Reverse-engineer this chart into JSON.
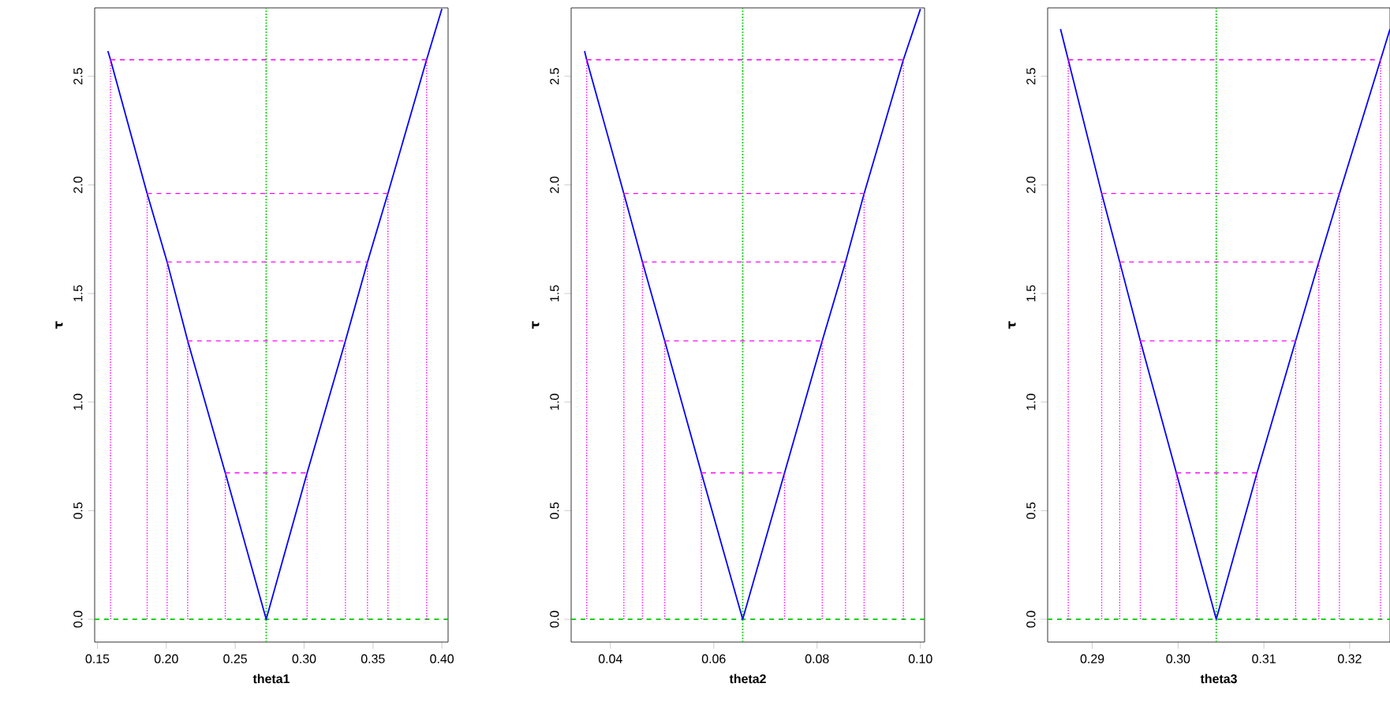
{
  "chart_data": [
    {
      "type": "line",
      "xlabel": "theta1",
      "ylabel": "τ",
      "xlim": [
        0.148,
        0.4045
      ],
      "ylim": [
        -0.105,
        2.815
      ],
      "xticks": [
        {
          "value": 0.15,
          "label": "0.15"
        },
        {
          "value": 0.2,
          "label": "0.20"
        },
        {
          "value": 0.25,
          "label": "0.25"
        },
        {
          "value": 0.3,
          "label": "0.30"
        },
        {
          "value": 0.35,
          "label": "0.35"
        },
        {
          "value": 0.4,
          "label": "0.40"
        }
      ],
      "yticks": [
        {
          "value": 0,
          "label": "0.0"
        },
        {
          "value": 0.5,
          "label": "0.5"
        },
        {
          "value": 1,
          "label": "1.0"
        },
        {
          "value": 1.5,
          "label": "1.5"
        },
        {
          "value": 2,
          "label": "2.0"
        },
        {
          "value": 2.5,
          "label": "2.5"
        }
      ],
      "series": [
        {
          "color": "#0000ff",
          "line_style": "solid",
          "x": [
            0.1576,
            0.1595,
            0.1861,
            0.2006,
            0.2155,
            0.2428,
            0.2725,
            0.3022,
            0.33,
            0.346,
            0.3608,
            0.3889,
            0.4
          ],
          "values": [
            2.616,
            2.576,
            1.96,
            1.645,
            1.282,
            0.674,
            0,
            0.674,
            1.282,
            1.645,
            1.96,
            2.576,
            2.81
          ]
        },
        {
          "color": "#ff00ff",
          "line_style": "dashed",
          "x": [
            0.2428,
            0.3022,
            null,
            0.2155,
            0.33,
            null,
            0.2006,
            0.346,
            null,
            0.1861,
            0.3608,
            null,
            0.1595,
            0.3889
          ],
          "values": [
            0.674,
            0.674,
            null,
            1.282,
            1.282,
            null,
            1.645,
            1.645,
            null,
            1.96,
            1.96,
            null,
            2.576,
            2.576
          ]
        },
        {
          "color": "#ff00ff",
          "line_style": "dotted",
          "x": [
            0.2428,
            0.2428,
            null,
            0.3022,
            0.3022,
            null,
            0.2155,
            0.2155,
            null,
            0.33,
            0.33,
            null,
            0.2006,
            0.2006,
            null,
            0.346,
            0.346,
            null,
            0.1861,
            0.1861,
            null,
            0.3608,
            0.3608,
            null,
            0.1595,
            0.1595,
            null,
            0.3889,
            0.3889
          ],
          "values": [
            0,
            0.674,
            null,
            0,
            0.674,
            null,
            0,
            1.282,
            null,
            0,
            1.282,
            null,
            0,
            1.645,
            null,
            0,
            1.645,
            null,
            0,
            1.96,
            null,
            0,
            1.96,
            null,
            0,
            2.576,
            null,
            0,
            2.576
          ]
        }
      ],
      "ref_lines": [
        {
          "axis": "x",
          "value": 0.2725,
          "color": "#00cc00",
          "line_style": "dotted"
        },
        {
          "axis": "y",
          "value": 0,
          "color": "#00cc00",
          "line_style": "dashed"
        }
      ]
    },
    {
      "type": "line",
      "xlabel": "theta2",
      "ylabel": "τ",
      "xlim": [
        0.0324,
        0.1008
      ],
      "ylim": [
        -0.105,
        2.815
      ],
      "xticks": [
        {
          "value": 0.04,
          "label": "0.04"
        },
        {
          "value": 0.06,
          "label": "0.06"
        },
        {
          "value": 0.08,
          "label": "0.08"
        },
        {
          "value": 0.1,
          "label": "0.10"
        }
      ],
      "yticks": [
        {
          "value": 0,
          "label": "0.0"
        },
        {
          "value": 0.5,
          "label": "0.5"
        },
        {
          "value": 1,
          "label": "1.0"
        },
        {
          "value": 1.5,
          "label": "1.5"
        },
        {
          "value": 2,
          "label": "2.0"
        },
        {
          "value": 2.5,
          "label": "2.5"
        }
      ],
      "series": [
        {
          "color": "#0000ff",
          "line_style": "solid",
          "x": [
            0.035,
            0.0354,
            0.0426,
            0.0462,
            0.0505,
            0.0576,
            0.0656,
            0.0737,
            0.081,
            0.0855,
            0.0891,
            0.0967,
            0.1
          ],
          "values": [
            2.616,
            2.576,
            1.96,
            1.645,
            1.282,
            0.674,
            0,
            0.674,
            1.282,
            1.645,
            1.96,
            2.576,
            2.81
          ]
        },
        {
          "color": "#ff00ff",
          "line_style": "dashed",
          "x": [
            0.0576,
            0.0737,
            null,
            0.0505,
            0.081,
            null,
            0.0462,
            0.0855,
            null,
            0.0426,
            0.0891,
            null,
            0.0354,
            0.0967
          ],
          "values": [
            0.674,
            0.674,
            null,
            1.282,
            1.282,
            null,
            1.645,
            1.645,
            null,
            1.96,
            1.96,
            null,
            2.576,
            2.576
          ]
        },
        {
          "color": "#ff00ff",
          "line_style": "dotted",
          "x": [
            0.0576,
            0.0576,
            null,
            0.0737,
            0.0737,
            null,
            0.0505,
            0.0505,
            null,
            0.081,
            0.081,
            null,
            0.0462,
            0.0462,
            null,
            0.0855,
            0.0855,
            null,
            0.0426,
            0.0426,
            null,
            0.0891,
            0.0891,
            null,
            0.0354,
            0.0354,
            null,
            0.0967,
            0.0967
          ],
          "values": [
            0,
            0.674,
            null,
            0,
            0.674,
            null,
            0,
            1.282,
            null,
            0,
            1.282,
            null,
            0,
            1.645,
            null,
            0,
            1.645,
            null,
            0,
            1.96,
            null,
            0,
            1.96,
            null,
            0,
            2.576,
            null,
            0,
            2.576
          ]
        }
      ],
      "ref_lines": [
        {
          "axis": "x",
          "value": 0.0656,
          "color": "#00cc00",
          "line_style": "dotted"
        },
        {
          "axis": "y",
          "value": 0,
          "color": "#00cc00",
          "line_style": "dashed"
        }
      ]
    },
    {
      "type": "line",
      "xlabel": "theta3",
      "ylabel": "τ",
      "xlim": [
        0.2848,
        0.3247
      ],
      "ylim": [
        -0.105,
        2.815
      ],
      "xticks": [
        {
          "value": 0.29,
          "label": "0.29"
        },
        {
          "value": 0.3,
          "label": "0.30"
        },
        {
          "value": 0.31,
          "label": "0.31"
        },
        {
          "value": 0.32,
          "label": "0.32"
        }
      ],
      "yticks": [
        {
          "value": 0,
          "label": "0.0"
        },
        {
          "value": 0.5,
          "label": "0.5"
        },
        {
          "value": 1,
          "label": "1.0"
        },
        {
          "value": 1.5,
          "label": "1.5"
        },
        {
          "value": 2,
          "label": "2.0"
        },
        {
          "value": 2.5,
          "label": "2.5"
        }
      ],
      "series": [
        {
          "color": "#0000ff",
          "line_style": "solid",
          "x": [
            0.2863,
            0.2872,
            0.2911,
            0.2932,
            0.2956,
            0.2998,
            0.30445,
            0.3092,
            0.3137,
            0.3164,
            0.3188,
            0.3236,
            0.3247
          ],
          "values": [
            2.718,
            2.576,
            1.96,
            1.645,
            1.282,
            0.674,
            0,
            0.674,
            1.282,
            1.645,
            1.96,
            2.576,
            2.718
          ]
        },
        {
          "color": "#ff00ff",
          "line_style": "dashed",
          "x": [
            0.2998,
            0.3092,
            null,
            0.2956,
            0.3137,
            null,
            0.2932,
            0.3164,
            null,
            0.2911,
            0.3188,
            null,
            0.2872,
            0.3236
          ],
          "values": [
            0.674,
            0.674,
            null,
            1.282,
            1.282,
            null,
            1.645,
            1.645,
            null,
            1.96,
            1.96,
            null,
            2.576,
            2.576
          ]
        },
        {
          "color": "#ff00ff",
          "line_style": "dotted",
          "x": [
            0.2998,
            0.2998,
            null,
            0.3092,
            0.3092,
            null,
            0.2956,
            0.2956,
            null,
            0.3137,
            0.3137,
            null,
            0.2932,
            0.2932,
            null,
            0.3164,
            0.3164,
            null,
            0.2911,
            0.2911,
            null,
            0.3188,
            0.3188,
            null,
            0.2872,
            0.2872,
            null,
            0.3236,
            0.3236
          ],
          "values": [
            0,
            0.674,
            null,
            0,
            0.674,
            null,
            0,
            1.282,
            null,
            0,
            1.282,
            null,
            0,
            1.645,
            null,
            0,
            1.645,
            null,
            0,
            1.96,
            null,
            0,
            1.96,
            null,
            0,
            2.576,
            null,
            0,
            2.576
          ]
        }
      ],
      "ref_lines": [
        {
          "axis": "x",
          "value": 0.30445,
          "color": "#00cc00",
          "line_style": "dotted"
        },
        {
          "axis": "y",
          "value": 0,
          "color": "#00cc00",
          "line_style": "dashed"
        }
      ]
    }
  ]
}
